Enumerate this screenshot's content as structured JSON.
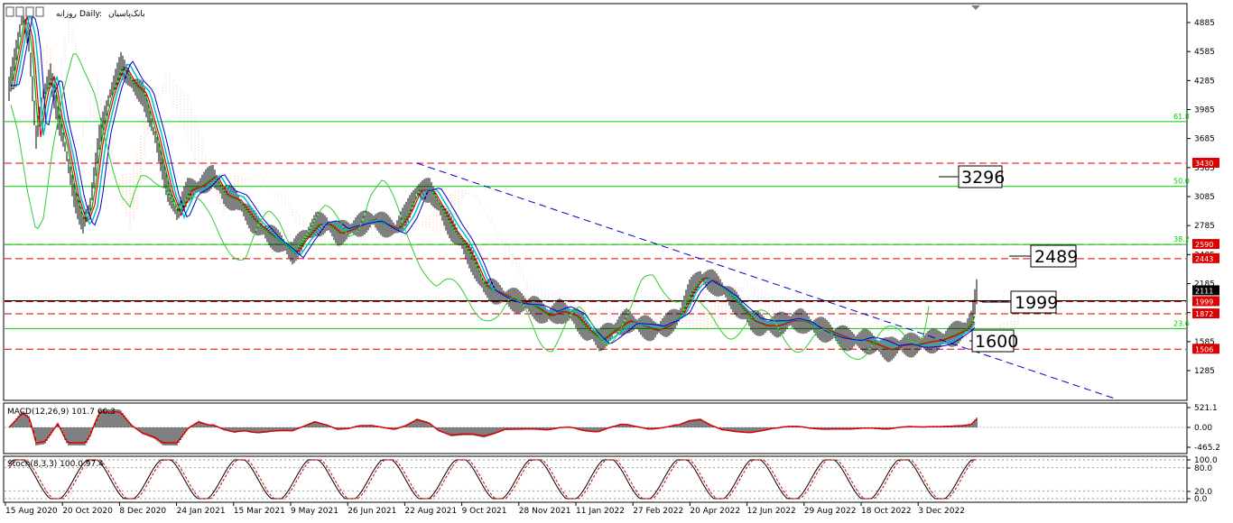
{
  "header": {
    "symbol": "بانک‌پاسیان",
    "timeframe": "Daily:",
    "suffix": "روزانه"
  },
  "colors": {
    "price_up": "#000000",
    "ichimoku_a": "#f4a460",
    "ichimoku_b": "#d8bfd8",
    "resistance": "#dd0000",
    "fib": "#00cc00",
    "trendline": "#0000cc",
    "macd_signal": "#dd0000",
    "stoch_signal": "#dd0000",
    "cyan_ma": "#00bcd4",
    "blue_ma": "#0000cc"
  },
  "price_axis": {
    "ticks": [
      "4885",
      "4585",
      "4285",
      "3985",
      "3685",
      "3385",
      "3085",
      "2785",
      "2485",
      "2185",
      "1885",
      "1585",
      "1285"
    ]
  },
  "price_tags": [
    {
      "value": "3430",
      "color": "#dd0000"
    },
    {
      "value": "2590",
      "color": "#dd0000"
    },
    {
      "value": "2443",
      "color": "#dd0000"
    },
    {
      "value": "2111",
      "color": "#000000"
    },
    {
      "value": "1999",
      "color": "#dd0000"
    },
    {
      "value": "1872",
      "color": "#dd0000"
    },
    {
      "value": "1506",
      "color": "#dd0000"
    }
  ],
  "fib_levels": [
    {
      "label": "61.8",
      "value": 3860
    },
    {
      "label": "50.0",
      "value": 3190
    },
    {
      "label": "38.2",
      "value": 2590
    },
    {
      "label": "23.6",
      "value": 1720
    }
  ],
  "annotations": [
    "3296",
    "2489",
    "1999",
    "1600"
  ],
  "date_axis": [
    "15 Aug 2020",
    "20 Oct 2020",
    "8 Dec 2020",
    "24 Jan 2021",
    "15 Mar 2021",
    "9 May 2021",
    "26 Jun 2021",
    "22 Aug 2021",
    "9 Oct 2021",
    "28 Nov 2021",
    "11 Jan 2022",
    "27 Feb 2022",
    "20 Apr 2022",
    "12 Jun 2022",
    "29 Aug 2022",
    "18 Oct 2022",
    "3 Dec 2022"
  ],
  "macd": {
    "title": "MACD(12,26,9) 101.7 60.3",
    "axis": [
      "521.1",
      "0.00",
      "-465.2"
    ]
  },
  "stoch": {
    "title": "Stoch(8,3,3) 100.0 97.4",
    "axis": [
      "100.0",
      "80.0",
      "20.0",
      "0.0"
    ]
  },
  "chart_data": {
    "type": "line",
    "x": [
      "15 Aug 2020",
      "20 Oct 2020",
      "8 Dec 2020",
      "24 Jan 2021",
      "15 Mar 2021",
      "9 May 2021",
      "26 Jun 2021",
      "22 Aug 2021",
      "9 Oct 2021",
      "28 Nov 2021",
      "11 Jan 2022",
      "27 Feb 2022",
      "20 Apr 2022",
      "12 Jun 2022",
      "29 Aug 2022",
      "18 Oct 2022",
      "3 Dec 2022"
    ],
    "series": [
      {
        "values": [
          4850,
          2750,
          4550,
          3250,
          2450,
          2500,
          2750,
          3350,
          2050,
          1850,
          1600,
          1750,
          2450,
          1900,
          1650,
          1500,
          1700
        ]
      }
    ],
    "ylim": [
      1050,
      5050
    ],
    "horizontal_levels": [
      3430,
      2590,
      2443,
      1999,
      1872,
      1506
    ],
    "annotations": [
      3296,
      2489,
      1999,
      1600
    ]
  }
}
